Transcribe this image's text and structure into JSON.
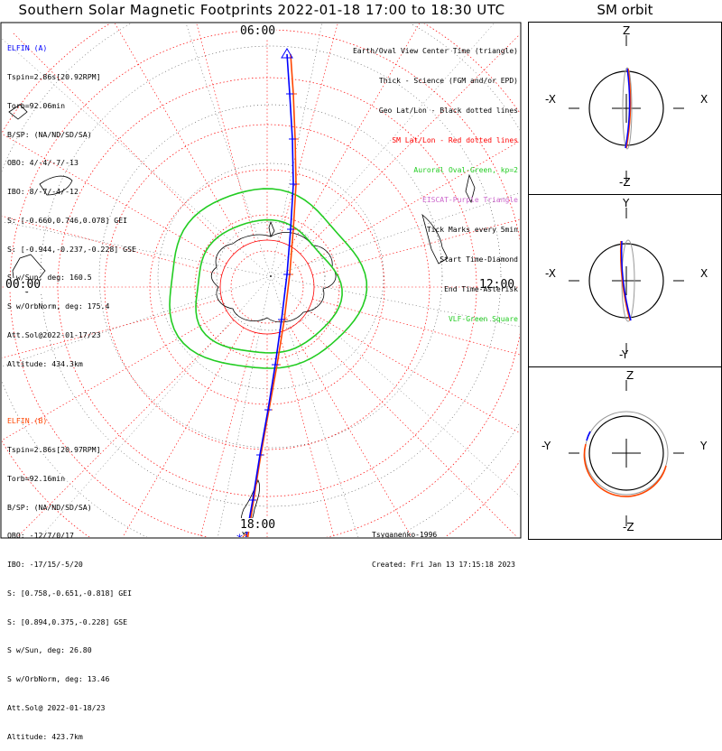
{
  "title": "Southern Solar Magnetic Footprints 2022-01-18 17:00 to 18:30 UTC",
  "sm_title": "SM orbit",
  "mlt_labels": {
    "top": "06:00",
    "bottom": "18:00",
    "left": "00:00",
    "right": "12:00"
  },
  "elfin_a": {
    "color": "#0000ff",
    "lines": [
      "ELFIN (A)",
      "Tspin=2.86s[20.92RPM]",
      "Torb=92.06min",
      "B/SP: (NA/ND/SD/SA)",
      "OBO: 4/-4/-7/-13",
      "IBO: 8/-7/-4/-12",
      "S: [-0.660,0.746,0.078] GEI",
      "S: [-0.944,-0.237,-0.228] GSE",
      "S w/Sun, deg: 160.5",
      "S w/OrbNorm, deg: 175.4",
      "Att.Sol@2022-01-17/23",
      "Altitude: 434.3km"
    ]
  },
  "elfin_b": {
    "color": "#ff4500",
    "lines": [
      "ELFIN (B)",
      "Tspin=2.86s[20.97RPM]",
      "Torb=92.16min",
      "B/SP: (NA/ND/SD/SA)",
      "OBO: -12/7/0/17",
      "IBO: -17/15/-5/20",
      "S: [0.758,-0.651,-0.818] GEI",
      "S: [0.894,0.375,-0.228] GSE",
      "S w/Sun, deg: 26.80",
      "S w/OrbNorm, deg: 13.46",
      "Att.Sol@ 2022-01-18/23",
      "Altitude: 423.7km"
    ]
  },
  "legend": [
    {
      "text": "Earth/Oval View Center Time (triangle)",
      "color": "#000000"
    },
    {
      "text": "Thick - Science (FGM and/or EPD)",
      "color": "#000000"
    },
    {
      "text": "Geo Lat/Lon - Black dotted lines",
      "color": "#000000"
    },
    {
      "text": "SM Lat/Lon - Red dotted lines",
      "color": "#ff0000"
    },
    {
      "text": "Auroral Oval-Green, kp=2",
      "color": "#22cc22"
    },
    {
      "text": "EISCAT-Purple Triangle",
      "color": "#cc66cc"
    },
    {
      "text": "Tick Marks every 5min",
      "color": "#000000"
    },
    {
      "text": "Start Time-Diamond",
      "color": "#000000"
    },
    {
      "text": "End Time-Asterisk",
      "color": "#000000"
    },
    {
      "text": "VLF-Green Square",
      "color": "#22cc22"
    }
  ],
  "credit": {
    "model": "Tsyganenko-1996",
    "created": "Created: Fri Jan 13 17:15:18 2023"
  },
  "sm_panels": [
    {
      "top": "Z",
      "bottom": "-Z",
      "left": "-X",
      "right": "X"
    },
    {
      "top": "Y",
      "bottom": "-Y",
      "left": "-X",
      "right": "X"
    },
    {
      "top": "Z",
      "bottom": "-Z",
      "left": "-Y",
      "right": "Y"
    }
  ],
  "colors": {
    "elfin_a": "#0000ff",
    "elfin_b": "#ff4500",
    "sm_grid": "#ff0000",
    "oval": "#22cc22"
  },
  "chart_data": {
    "type": "scatter",
    "projection": "south polar (MLT / SM latitude)",
    "series": [
      {
        "name": "ELFIN (A)",
        "color": "#0000ff"
      },
      {
        "name": "ELFIN (B)",
        "color": "#ff4500"
      }
    ],
    "mlt_ticks": [
      "00:00",
      "06:00",
      "12:00",
      "18:00"
    ]
  }
}
